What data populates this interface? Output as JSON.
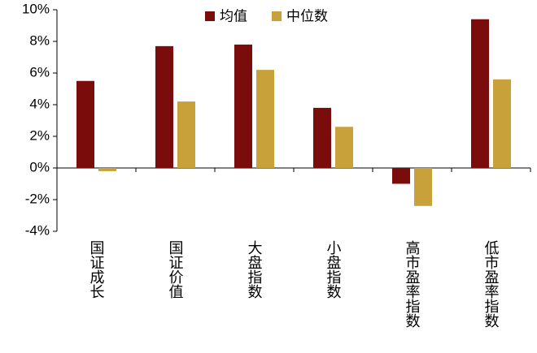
{
  "chart_data": {
    "type": "bar",
    "categories": [
      "国证成长",
      "国证价值",
      "大盘指数",
      "小盘指数",
      "高市盈率指数",
      "低市盈率指数"
    ],
    "series": [
      {
        "name": "均值",
        "color": "#7b0c0c",
        "values": [
          5.5,
          7.7,
          7.8,
          3.8,
          -1.0,
          9.4
        ]
      },
      {
        "name": "中位数",
        "color": "#c9a13b",
        "values": [
          -0.2,
          4.2,
          6.2,
          2.6,
          -2.4,
          5.6
        ]
      }
    ],
    "ylim": [
      -4,
      10
    ],
    "yticks": [
      {
        "value": -4,
        "label": "-4%"
      },
      {
        "value": -2,
        "label": "-2%"
      },
      {
        "value": 0,
        "label": "0%"
      },
      {
        "value": 2,
        "label": "2%"
      },
      {
        "value": 4,
        "label": "4%"
      },
      {
        "value": 6,
        "label": "6%"
      },
      {
        "value": 8,
        "label": "8%"
      },
      {
        "value": 10,
        "label": "10%"
      }
    ],
    "legend": "top"
  }
}
